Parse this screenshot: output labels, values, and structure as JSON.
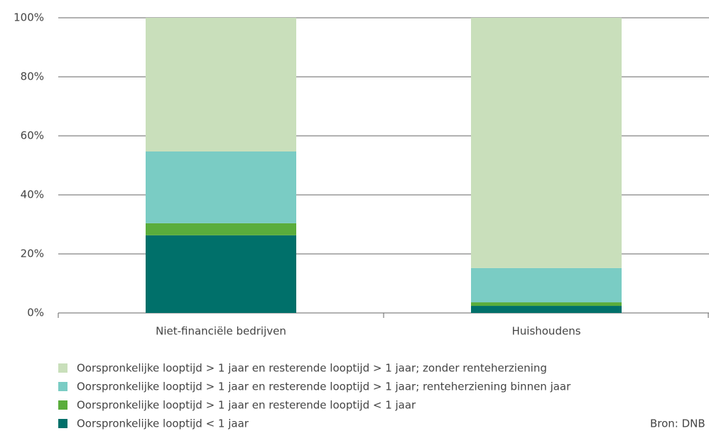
{
  "chart_data": {
    "type": "stacked_bar",
    "categories": [
      "Niet-financiële bedrijven",
      "Huishoudens"
    ],
    "series": [
      {
        "name": "Oorspronkelijke looptijd > 1 jaar en resterende looptijd > 1 jaar; zonder renteherziening",
        "color": "#c9dfbb",
        "values": [
          45.3,
          84.8
        ]
      },
      {
        "name": "Oorspronkelijke looptijd > 1 jaar en resterende looptijd > 1 jaar; renteherziening binnen jaar",
        "color": "#7accc4",
        "values": [
          24.3,
          11.6
        ]
      },
      {
        "name": "Oorspronkelijke looptijd > 1 jaar en resterende looptijd < 1 jaar",
        "color": "#5aad3c",
        "values": [
          4.1,
          1.2
        ]
      },
      {
        "name": "Oorspronkelijke looptijd < 1 jaar",
        "color": "#00706a",
        "values": [
          26.3,
          2.4
        ]
      }
    ],
    "ylim": [
      0,
      100
    ],
    "yticks": [
      {
        "value": 0,
        "label": "0%"
      },
      {
        "value": 20,
        "label": "20%"
      },
      {
        "value": 40,
        "label": "40%"
      },
      {
        "value": 60,
        "label": "60%"
      },
      {
        "value": 80,
        "label": "80%"
      },
      {
        "value": 100,
        "label": "100%"
      }
    ],
    "grid": true,
    "source": "Bron: DNB"
  }
}
